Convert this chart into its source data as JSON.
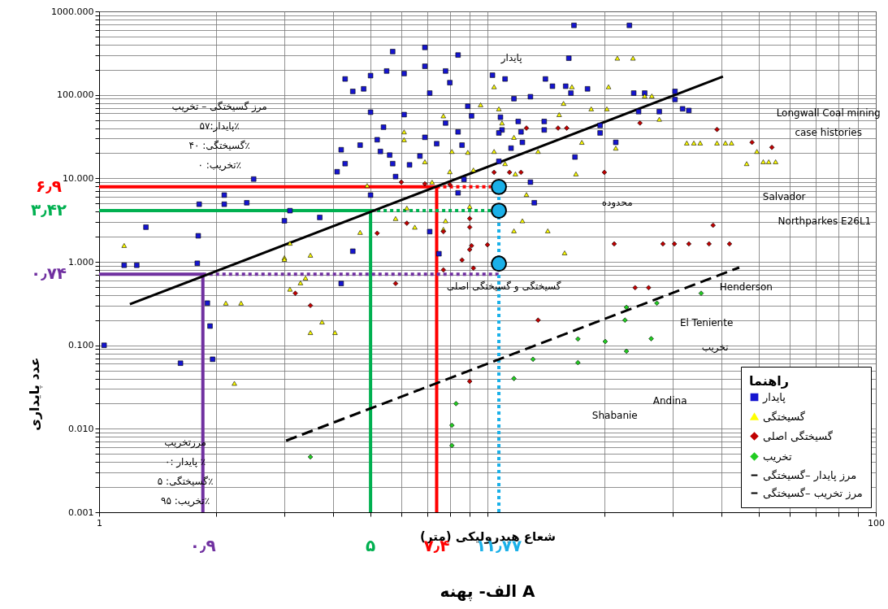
{
  "chart_data": {
    "type": "scatter",
    "title": "الف- پهنه A",
    "xlabel": "شعاع هیدرولیکی (متر)",
    "ylabel": "عدد پایداری",
    "legend_title": "راهنما",
    "legend": "bottom right",
    "grid": true,
    "log": "xy",
    "xlim": [
      1,
      100
    ],
    "xticks": [
      1,
      {
        "value": 2,
        "label": null
      },
      {
        "value": 3,
        "label": null
      },
      {
        "value": 4,
        "label": null
      },
      {
        "value": 5,
        "label": null
      },
      {
        "value": 6,
        "label": null
      },
      {
        "value": 7,
        "label": null
      },
      {
        "value": 8,
        "label": null
      },
      {
        "value": 9,
        "label": null
      },
      {
        "value": 10,
        "label": null
      },
      {
        "value": 20,
        "label": null
      },
      {
        "value": 30,
        "label": null
      },
      {
        "value": 40,
        "label": null
      },
      {
        "value": 50,
        "label": null
      },
      {
        "value": 60,
        "label": null
      },
      {
        "value": 70,
        "label": null
      },
      {
        "value": 80,
        "label": null
      },
      {
        "value": 90,
        "label": null
      },
      100
    ],
    "ylim": [
      0.001,
      1000
    ],
    "yticks": [
      {
        "value": 0.001,
        "label": "0.001"
      },
      {
        "value": 0.002,
        "label": null
      },
      {
        "value": 0.003,
        "label": null
      },
      {
        "value": 0.004,
        "label": null
      },
      {
        "value": 0.005,
        "label": null
      },
      {
        "value": 0.006,
        "label": null
      },
      {
        "value": 0.007,
        "label": null
      },
      {
        "value": 0.008,
        "label": null
      },
      {
        "value": 0.009,
        "label": null
      },
      {
        "value": 0.01,
        "label": "0.010"
      },
      {
        "value": 0.02,
        "label": null
      },
      {
        "value": 0.03,
        "label": null
      },
      {
        "value": 0.04,
        "label": null
      },
      {
        "value": 0.05,
        "label": null
      },
      {
        "value": 0.06,
        "label": null
      },
      {
        "value": 0.07,
        "label": null
      },
      {
        "value": 0.08,
        "label": null
      },
      {
        "value": 0.09,
        "label": null
      },
      {
        "value": 0.1,
        "label": "0.100"
      },
      {
        "value": 0.2,
        "label": null
      },
      {
        "value": 0.3,
        "label": null
      },
      {
        "value": 0.4,
        "label": null
      },
      {
        "value": 0.5,
        "label": null
      },
      {
        "value": 0.6,
        "label": null
      },
      {
        "value": 0.7,
        "label": null
      },
      {
        "value": 0.8,
        "label": null
      },
      {
        "value": 0.9,
        "label": null
      },
      {
        "value": 1,
        "label": "1.000"
      },
      {
        "value": 2,
        "label": null
      },
      {
        "value": 3,
        "label": null
      },
      {
        "value": 4,
        "label": null
      },
      {
        "value": 5,
        "label": null
      },
      {
        "value": 6,
        "label": null
      },
      {
        "value": 7,
        "label": null
      },
      {
        "value": 8,
        "label": null
      },
      {
        "value": 9,
        "label": null
      },
      {
        "value": 10,
        "label": "10.000"
      },
      {
        "value": 20,
        "label": null
      },
      {
        "value": 30,
        "label": null
      },
      {
        "value": 40,
        "label": null
      },
      {
        "value": 50,
        "label": null
      },
      {
        "value": 60,
        "label": null
      },
      {
        "value": 70,
        "label": null
      },
      {
        "value": 80,
        "label": null
      },
      {
        "value": 90,
        "label": null
      },
      {
        "value": 100,
        "label": "100.000"
      },
      {
        "value": 200,
        "label": null
      },
      {
        "value": 300,
        "label": null
      },
      {
        "value": 400,
        "label": null
      },
      {
        "value": 500,
        "label": null
      },
      {
        "value": 600,
        "label": null
      },
      {
        "value": 700,
        "label": null
      },
      {
        "value": 800,
        "label": null
      },
      {
        "value": 900,
        "label": null
      },
      {
        "value": 1000,
        "label": "1000.000"
      }
    ],
    "series": [
      {
        "name": "پایدار",
        "type": "scatter",
        "marker": "square",
        "color": "#1515d0",
        "x": [
          1.03,
          1.16,
          1.25,
          1.32,
          1.8,
          1.79,
          1.9,
          1.93,
          1.96,
          1.62,
          1.81,
          2.1,
          2.1,
          2.4,
          2.5,
          3.0,
          3.1,
          3.7,
          4.3,
          4.5,
          4.8,
          5.0,
          4.2,
          4.3,
          4.7,
          4.1,
          4.5,
          5.0,
          5.2,
          5.4,
          5.5,
          5.7,
          6.1,
          6.9,
          6.9,
          7.1,
          8.4,
          7.8,
          8.0,
          6.1,
          5.7,
          6.3,
          6.7,
          6.9,
          7.4,
          7.8,
          8.4,
          8.6,
          9.1,
          8.9,
          7.1,
          7.5,
          8.4,
          8.7,
          5.0,
          5.3,
          5.6,
          5.8,
          4.2,
          16.7,
          23.2,
          16.2,
          10.3,
          11.1,
          14.1,
          14.7,
          15.9,
          16.4,
          18.1,
          23.8,
          25.4,
          30.4,
          30.4,
          31.8,
          33,
          24.5,
          27.7,
          19.5,
          19.5,
          21.4,
          16.8,
          14.0,
          14.0,
          12.2,
          12.3,
          12.0,
          11.7,
          12.9,
          10.8,
          10.9,
          10.7,
          11.5,
          12.9,
          13.2,
          10.7
        ],
        "values": [
          0.1,
          0.91,
          0.91,
          2.6,
          2.05,
          0.96,
          0.32,
          0.17,
          0.068,
          0.061,
          4.9,
          6.3,
          4.9,
          5.1,
          9.8,
          3.1,
          4.1,
          3.4,
          155,
          110,
          118,
          170,
          22,
          15,
          25,
          12,
          1.34,
          62,
          29,
          41,
          193,
          330,
          180,
          370,
          220,
          105,
          300,
          193,
          140,
          58,
          15,
          14.5,
          18.5,
          31,
          26,
          46,
          36,
          25,
          56,
          73,
          2.3,
          1.25,
          6.7,
          9.7,
          6.3,
          21,
          19,
          10.5,
          0.55,
          680,
          680,
          275,
          172,
          155,
          155,
          127,
          127,
          105,
          118,
          105,
          105,
          110,
          88,
          68,
          65,
          63,
          63,
          43,
          35,
          27,
          18,
          48,
          38,
          36,
          27,
          48,
          90,
          95,
          54,
          38,
          35,
          23,
          9,
          5.1,
          16
        ]
      },
      {
        "name": "گسیختگی",
        "type": "scatter",
        "marker": "triangle",
        "color": "#ffff00",
        "x": [
          1.16,
          3.1,
          3.5,
          3.0,
          4.7,
          5.8,
          6.5,
          6.2,
          6.1,
          6.1,
          6.9,
          7.7,
          8.1,
          8.0,
          9.2,
          8.9,
          9.6,
          7.8,
          9.0,
          4.9,
          7.2,
          7.7,
          2.12,
          2.32,
          2.23,
          3.1,
          3.3,
          3.4,
          3.75,
          3.5,
          4.05,
          3.0,
          21.6,
          23.7,
          10.4,
          16.5,
          20.5,
          25.4,
          26.5,
          15.7,
          18.5,
          20.3,
          15.3,
          27.7,
          10.7,
          10.9,
          11.7,
          17.5,
          21.4,
          13.5,
          10.4,
          11.1,
          16.9,
          11.8,
          12.6,
          12.3,
          11.7,
          15.8,
          14.3,
          32.6,
          34.0,
          35.3,
          39,
          41,
          42.5,
          49.4,
          46.5,
          51.3,
          53,
          55.2
        ],
        "values": [
          1.57,
          1.67,
          1.2,
          1.12,
          2.25,
          3.3,
          2.6,
          4.4,
          29,
          36,
          15.8,
          56,
          21,
          12,
          12.6,
          20.5,
          76,
          3.1,
          4.6,
          8.2,
          9,
          2.45,
          0.32,
          0.32,
          0.035,
          0.47,
          0.56,
          0.64,
          0.19,
          0.142,
          0.142,
          1.07,
          275,
          275,
          125,
          125,
          125,
          97,
          97,
          79,
          68,
          68,
          58,
          51,
          68,
          46,
          31,
          27,
          23,
          21,
          21,
          15,
          11.3,
          11.3,
          6.4,
          3.1,
          2.35,
          1.28,
          2.35,
          26.5,
          26.5,
          26.5,
          26.5,
          26.5,
          26.5,
          21,
          15,
          15.8,
          15.8,
          15.8
        ]
      },
      {
        "name": "گسیختگی اصلی",
        "type": "scatter",
        "marker": "diamond",
        "color": "#c00000",
        "x": [
          6.0,
          6.9,
          8.0,
          5.2,
          6.2,
          7.7,
          9.0,
          9.0,
          9.1,
          9.0,
          8.6,
          10,
          3.2,
          3.5,
          5.8,
          7.7,
          9.2,
          9.0,
          13.5,
          12.6,
          15.2,
          16.0,
          24.7,
          20.0,
          10.4,
          11.4,
          12.2,
          39,
          48,
          54,
          38.1,
          21.2,
          28.3,
          30.3,
          33,
          37.2,
          42,
          24,
          26
        ],
        "values": [
          9,
          8.6,
          8.4,
          2.2,
          2.9,
          2.3,
          3.3,
          2.6,
          1.56,
          1.4,
          1.05,
          1.6,
          0.42,
          0.3,
          0.55,
          0.8,
          0.84,
          0.037,
          0.2,
          40,
          40,
          40,
          46,
          11.8,
          11.8,
          11.8,
          11.8,
          38.5,
          27,
          23.5,
          2.74,
          1.64,
          1.64,
          1.64,
          1.64,
          1.64,
          1.64,
          0.49,
          0.49
        ]
      },
      {
        "name": "تخریب",
        "type": "scatter",
        "marker": "diamond",
        "color": "#22cc22",
        "x": [
          3.5,
          8.3,
          8.1,
          8.1,
          35.5,
          22.8,
          27.3,
          22.6,
          17.1,
          20.1,
          26.4,
          22.8,
          13.1,
          17.1,
          11.7
        ],
        "values": [
          0.0046,
          0.02,
          0.011,
          0.0063,
          0.42,
          0.285,
          0.32,
          0.2,
          0.119,
          0.111,
          0.12,
          0.085,
          0.068,
          0.062,
          0.04
        ]
      },
      {
        "name": "مرز پایدار –گسیختگی",
        "type": "line",
        "line_style": "solid",
        "color": "#000000",
        "x": [
          1.2,
          40.4
        ],
        "values": [
          0.31,
          166
        ]
      },
      {
        "name": "مرز تخریب –گسیختگی",
        "type": "line",
        "line_style": "dashed",
        "color": "#000000",
        "x": [
          3.03,
          44.5
        ],
        "values": [
          0.0072,
          0.855
        ]
      },
      {
        "type": "line",
        "line_style": "solid",
        "color": "#ff0000",
        "x": [
          1,
          7.4,
          7.4
        ],
        "values": [
          7.9,
          7.9,
          0.001
        ]
      },
      {
        "type": "line",
        "line_style": "dotted",
        "color": "#ff0000",
        "x": [
          7.4,
          10.2
        ],
        "values": [
          7.9,
          7.9
        ]
      },
      {
        "type": "line",
        "line_style": "solid",
        "color": "#00b050",
        "x": [
          1,
          5,
          5
        ],
        "values": [
          4.1,
          4.1,
          0.001
        ]
      },
      {
        "type": "line",
        "line_style": "dotted",
        "color": "#00b050",
        "x": [
          5,
          10.2
        ],
        "values": [
          4.1,
          4.1
        ]
      },
      {
        "type": "line",
        "line_style": "solid",
        "color": "#7030a0",
        "x": [
          1,
          1.85,
          1.85
        ],
        "values": [
          0.71,
          0.71,
          0.001
        ]
      },
      {
        "type": "line",
        "line_style": "dotted",
        "color": "#7030a0",
        "x": [
          1.85,
          10.7
        ],
        "values": [
          0.71,
          0.71
        ]
      },
      {
        "type": "line",
        "line_style": "dotted",
        "color": "#1ab0e8",
        "x": [
          10.7,
          10.7
        ],
        "values": [
          0.001,
          7.9
        ]
      },
      {
        "type": "scatter",
        "marker": "circle",
        "color": "#1ab0e8",
        "x": [
          10.7,
          10.7,
          10.7
        ],
        "values": [
          7.9,
          4.1,
          0.95
        ]
      }
    ],
    "annotations": [
      {
        "text": "۶٫۹",
        "x": 1,
        "y": 7.9
      },
      {
        "text": "۳٫۴۲",
        "x": 1,
        "y": 4.1
      },
      {
        "text": "۰٫۷۴",
        "x": 1,
        "y": 0.71
      },
      {
        "text": "۰٫۹",
        "x": 1.85,
        "y": 0.001
      },
      {
        "text": "۵",
        "x": 5,
        "y": 0.001
      },
      {
        "text": "۷٫۴",
        "x": 7.4,
        "y": 0.001
      },
      {
        "text": "۱۱٫۷۷",
        "x": 10.7,
        "y": 0.001
      },
      "مرز گسیختگی – تخریب\nپایدار:۵۷٪\nگسیختگی: ۴۰٪\nتخریب: ۰٪",
      "مرزتخریب\nپایدار :۰ ٪\nگسیختگی: ۵٪\nتخریب: ۹۵٪",
      "پایدار",
      "محدوده",
      "گسیختگی و گسیختگی اصلی",
      "تخریب",
      "Longwall Coal mining\ncase histories",
      "Salvador",
      "Northparkes E26L1",
      "Henderson",
      "El Teniente",
      "Andina",
      "Shabanie"
    ]
  }
}
